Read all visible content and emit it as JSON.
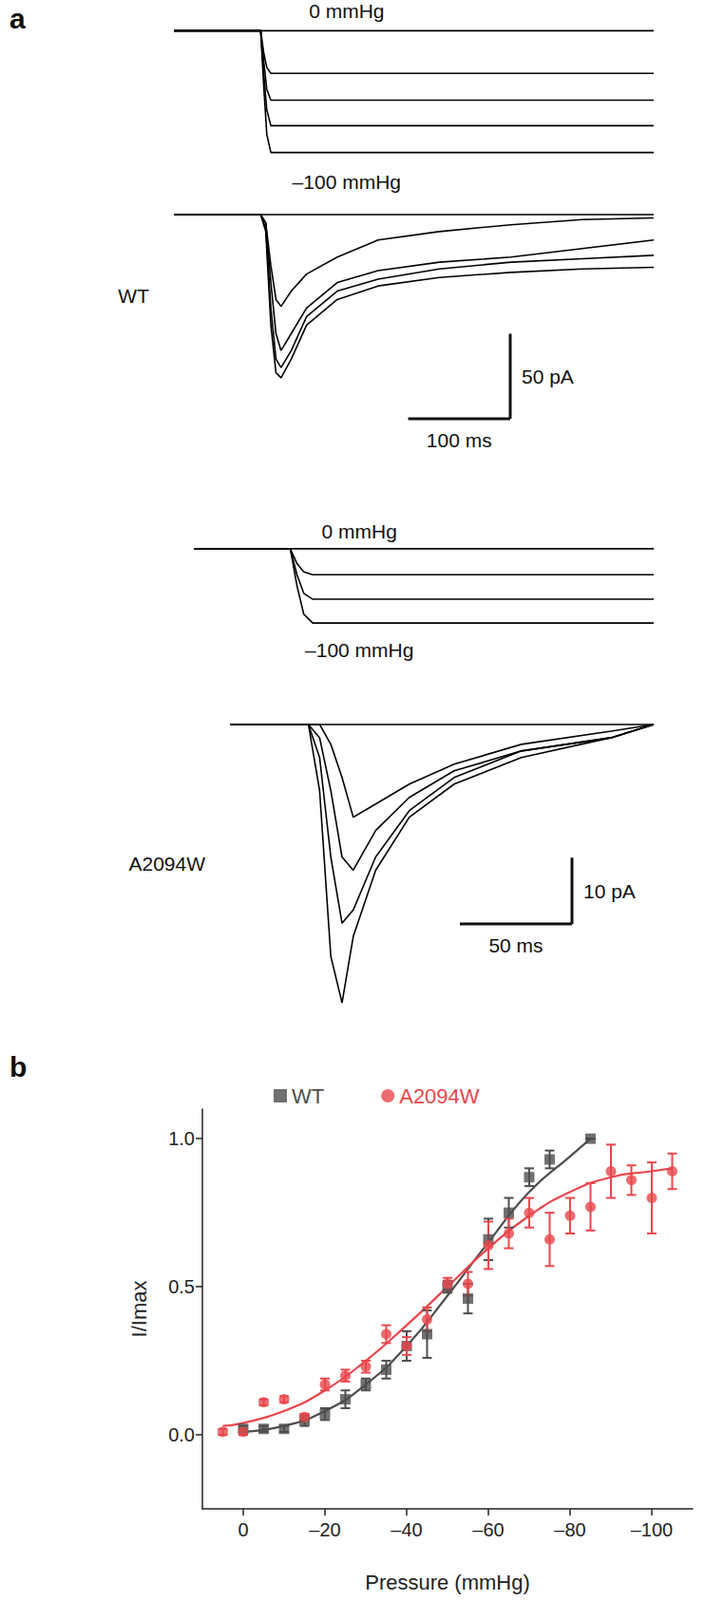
{
  "chart_data": [
    {
      "type": "line",
      "panel_label": "a",
      "tick_labels": false,
      "color": "#000000",
      "annotations": [
        "0 mmHg",
        "–100 mmHg"
      ],
      "xlim": [
        0,
        470
      ],
      "ylim": [
        -105,
        5
      ],
      "x": [
        0,
        85,
        88,
        91,
        95,
        470
      ],
      "series": [
        {
          "values": [
            0,
            0,
            0,
            0,
            0,
            0
          ]
        },
        {
          "values": [
            0,
            0,
            -18,
            -30,
            -35,
            -35
          ]
        },
        {
          "values": [
            0,
            0,
            -25,
            -48,
            -57,
            -57
          ]
        },
        {
          "values": [
            0,
            0,
            -35,
            -65,
            -78,
            -78
          ]
        },
        {
          "values": [
            0,
            0,
            -45,
            -85,
            -100,
            -100
          ]
        }
      ]
    },
    {
      "type": "line",
      "tick_labels": false,
      "color": "#000000",
      "annotations": [
        "WT"
      ],
      "scale_bar": {
        "x": 100,
        "x_label": "100 ms",
        "y": 50,
        "y_label": "50 pA"
      },
      "xlim": [
        0,
        470
      ],
      "ylim": [
        -100,
        5
      ],
      "x": [
        0,
        85,
        90,
        95,
        100,
        105,
        115,
        130,
        160,
        200,
        260,
        330,
        400,
        470
      ],
      "series": [
        {
          "values": [
            0,
            0,
            0,
            0,
            0,
            0,
            0,
            0,
            0,
            0,
            0,
            0,
            0,
            0
          ]
        },
        {
          "values": [
            0,
            0,
            -5,
            -30,
            -50,
            -54,
            -45,
            -35,
            -25,
            -15,
            -10,
            -6,
            -3,
            -2
          ]
        },
        {
          "values": [
            0,
            0,
            -5,
            -40,
            -70,
            -80,
            -70,
            -55,
            -40,
            -33,
            -28,
            -25,
            -20,
            -15
          ]
        },
        {
          "values": [
            0,
            0,
            -8,
            -55,
            -85,
            -90,
            -80,
            -60,
            -45,
            -38,
            -32,
            -28,
            -26,
            -24
          ]
        },
        {
          "values": [
            0,
            0,
            -10,
            -65,
            -93,
            -96,
            -85,
            -65,
            -50,
            -42,
            -37,
            -34,
            -32,
            -31
          ]
        }
      ]
    },
    {
      "type": "line",
      "tick_labels": false,
      "color": "#000000",
      "annotations": [
        "0 mmHg",
        "–100 mmHg"
      ],
      "xlim": [
        0,
        205
      ],
      "ylim": [
        -105,
        5
      ],
      "x": [
        0,
        43,
        46,
        49,
        53,
        205
      ],
      "series": [
        {
          "values": [
            0,
            0,
            0,
            0,
            0,
            0
          ]
        },
        {
          "values": [
            0,
            0,
            -20,
            -31,
            -35,
            -35
          ]
        },
        {
          "values": [
            0,
            0,
            -35,
            -60,
            -68,
            -68
          ]
        },
        {
          "values": [
            0,
            0,
            -50,
            -88,
            -100,
            -100
          ]
        }
      ]
    },
    {
      "type": "line",
      "tick_labels": false,
      "color": "#000000",
      "annotations": [
        "A2094W"
      ],
      "scale_bar": {
        "x": 50,
        "x_label": "50 ms",
        "y": 10,
        "y_label": "10 pA"
      },
      "xlim": [
        0,
        189
      ],
      "ylim": [
        -45,
        3
      ],
      "x": [
        0,
        35,
        40,
        45,
        50,
        55,
        65,
        80,
        100,
        130,
        170,
        189
      ],
      "series": [
        {
          "values": [
            0,
            0,
            0,
            0,
            0,
            0,
            0,
            0,
            0,
            0,
            0,
            0
          ]
        },
        {
          "values": [
            0,
            0,
            0,
            -3,
            -8,
            -14,
            -12,
            -9,
            -6,
            -3,
            -1,
            0
          ]
        },
        {
          "values": [
            0,
            0,
            -2,
            -10,
            -20,
            -22,
            -16,
            -11,
            -7,
            -4,
            -2,
            0
          ]
        },
        {
          "values": [
            0,
            0,
            -5,
            -20,
            -30,
            -28,
            -20,
            -13,
            -8,
            -4,
            -2,
            0
          ]
        },
        {
          "values": [
            0,
            0,
            -10,
            -35,
            -42,
            -32,
            -22,
            -14,
            -9,
            -5,
            -2,
            0
          ]
        }
      ]
    },
    {
      "type": "scatter",
      "panel_label": "b",
      "legend": "top",
      "grid": false,
      "x_label": "Pressure (mmHg)",
      "y_label": "I/Imax",
      "xlim": [
        10,
        -110
      ],
      "xticks": [
        0,
        {
          "value": -20,
          "label": "–20"
        },
        {
          "value": -40,
          "label": "–40"
        },
        {
          "value": -60,
          "label": "–60"
        },
        {
          "value": -80,
          "label": "–80"
        },
        {
          "value": -100,
          "label": "–100"
        }
      ],
      "ylim": [
        -0.25,
        1.1
      ],
      "yticks": [
        {
          "value": 0,
          "label": "0.0"
        },
        {
          "value": 0.5,
          "label": "0.5"
        },
        {
          "value": 1,
          "label": "1.0"
        }
      ],
      "series": [
        {
          "name": "WT",
          "color": "#4d4d4d",
          "marker": "square",
          "line_style": "solid",
          "x": [
            0,
            -5,
            -10,
            -15,
            -20,
            -25,
            -30,
            -35,
            -40,
            -45,
            -50,
            -55,
            -60,
            -65,
            -70,
            -75,
            -85
          ],
          "values": [
            0.02,
            0.02,
            0.02,
            0.05,
            0.07,
            0.12,
            0.17,
            0.22,
            0.3,
            0.34,
            0.5,
            0.46,
            0.66,
            0.75,
            0.87,
            0.93,
            1.0
          ],
          "errors": [
            0.01,
            0.01,
            0.01,
            0.02,
            0.02,
            0.03,
            0.02,
            0.03,
            0.05,
            0.08,
            0.02,
            0.05,
            0.07,
            0.05,
            0.03,
            0.03,
            0
          ],
          "fit": {
            "x": [
              0,
              -10,
              -20,
              -30,
              -40,
              -50,
              -60,
              -70,
              -80,
              -85
            ],
            "values": [
              0.01,
              0.03,
              0.08,
              0.17,
              0.3,
              0.47,
              0.65,
              0.82,
              0.94,
              1.0
            ]
          }
        },
        {
          "name": "A2094W",
          "color": "#e8474c",
          "marker": "circle",
          "line_style": "solid",
          "x": [
            5,
            0,
            -5,
            -10,
            -15,
            -20,
            -25,
            -30,
            -35,
            -40,
            -45,
            -50,
            -55,
            -60,
            -65,
            -70,
            -75,
            -80,
            -85,
            -90,
            -95,
            -100,
            -105
          ],
          "values": [
            0.01,
            0.01,
            0.11,
            0.12,
            0.06,
            0.17,
            0.2,
            0.23,
            0.34,
            0.3,
            0.39,
            0.51,
            0.51,
            0.64,
            0.68,
            0.75,
            0.66,
            0.74,
            0.77,
            0.89,
            0.86,
            0.8,
            0.89
          ],
          "errors": [
            0.01,
            0.01,
            0.01,
            0.01,
            0.01,
            0.02,
            0.02,
            0.02,
            0.03,
            0.03,
            0.04,
            0.02,
            0.04,
            0.08,
            0.05,
            0.05,
            0.09,
            0.06,
            0.08,
            0.09,
            0.05,
            0.12,
            0.06
          ],
          "fit": {
            "x": [
              5,
              0,
              -10,
              -20,
              -30,
              -40,
              -50,
              -60,
              -70,
              -80,
              -90,
              -100,
              -105
            ],
            "values": [
              0.03,
              0.04,
              0.08,
              0.15,
              0.25,
              0.37,
              0.5,
              0.63,
              0.74,
              0.82,
              0.87,
              0.89,
              0.9
            ]
          }
        }
      ]
    }
  ]
}
